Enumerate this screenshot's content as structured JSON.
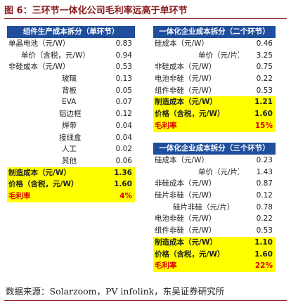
{
  "title": "图 6：三环节一体化公司毛利率远高于单环节",
  "tables": [
    {
      "header": "组件生产成本拆分（单环节）",
      "rows": [
        [
          "单晶电池（元/W）",
          "0.83"
        ],
        [
          "单价（含税，元/W）",
          "0.94"
        ],
        [
          "非硅成本（元/W）",
          "0.53"
        ],
        [
          "玻璃",
          "0.13"
        ],
        [
          "背板",
          "0.05"
        ],
        [
          "EVA",
          "0.07"
        ],
        [
          "铝边框",
          "0.12"
        ],
        [
          "焊带",
          "0.04"
        ],
        [
          "接线盒",
          "0.04"
        ],
        [
          "人工",
          "0.02"
        ],
        [
          "其他",
          "0.06"
        ],
        [
          "制造成本（元/W）",
          "1.36"
        ],
        [
          "价格（含税，元/W）",
          "1.60"
        ],
        [
          "毛利率",
          "4%"
        ]
      ]
    },
    {
      "header": "一体化企业成本拆分（二个环节）",
      "rows": [
        [
          "硅成本（元/W）",
          "0.46"
        ],
        [
          "单价（元/片）",
          "3.25"
        ],
        [
          "非硅成本（元/W）",
          "0.75"
        ],
        [
          "电池非硅（元/W）",
          "0.22"
        ],
        [
          "组件非硅（元/W）",
          "0.53"
        ],
        [
          "制造成本（元/W）",
          "1.21"
        ],
        [
          "价格（含税，元/W）",
          "1.60"
        ],
        [
          "毛利率",
          "15%"
        ]
      ]
    },
    {
      "header": "一体化企业成本拆分（三个环节）",
      "rows": [
        [
          "硅成本（元/W）",
          "0.23"
        ],
        [
          "单价（元/片）",
          "1.43"
        ],
        [
          "非硅成本（元/W）",
          "0.87"
        ],
        [
          "硅片非硅（元/W）",
          "0.12"
        ],
        [
          "硅片非硅（元/片）",
          "0.78"
        ],
        [
          "电池非硅（元/W）",
          "0.22"
        ],
        [
          "组件非硅（元/W）",
          "0.53"
        ],
        [
          "制造成本（元/W）",
          "1.10"
        ],
        [
          "价格（含税，元/W）",
          "1.60"
        ],
        [
          "毛利率",
          "22%"
        ]
      ]
    }
  ],
  "source": "数据来源：Solarzoom，PV infolink，东吴证券研究所"
}
